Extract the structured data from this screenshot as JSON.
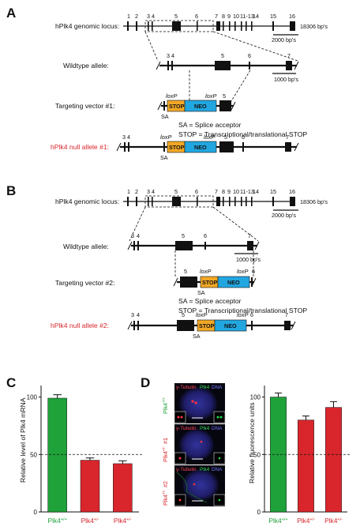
{
  "panelA": {
    "letter": "A",
    "genomic_label": "hPlk4 genomic locus:",
    "genomic_exons": [
      "1",
      "2",
      "3",
      "4",
      "5",
      "6",
      "7",
      "8",
      "9",
      "10",
      "11-13",
      "14",
      "15",
      "16"
    ],
    "genomic_size": "18306 bp's",
    "scale_genomic": "2000 bp's",
    "wt_label": "Wildtype allele:",
    "wt_exons": [
      "3",
      "4",
      "5",
      "6",
      "7"
    ],
    "scale_wt": "1000 bp's",
    "tv_label": "Targeting vector #1:",
    "loxp": "loxP",
    "stop": "STOP",
    "neo": "NEO",
    "sa": "SA",
    "tv_exon": "5",
    "sa_note": "SA = Splice acceptor",
    "stop_note": "STOP = Transcriptional/translational STOP",
    "null_label": "hPlk4 null allele #1:",
    "null_exons": [
      "3",
      "4",
      "5",
      "6",
      "7"
    ]
  },
  "panelB": {
    "letter": "B",
    "genomic_label": "hPlk4 genomic locus:",
    "genomic_exons": [
      "1",
      "2",
      "3",
      "4",
      "5",
      "6",
      "7",
      "8",
      "9",
      "10",
      "11-13",
      "14",
      "15",
      "16"
    ],
    "genomic_size": "18306 bp's",
    "scale_genomic": "2000 bp's",
    "wt_label": "Wildtype allele:",
    "wt_exons": [
      "3",
      "4",
      "5",
      "6",
      "7"
    ],
    "scale_wt": "1000 bp's",
    "tv_label": "Targeting vector #2:",
    "loxp": "loxP",
    "stop": "STOP",
    "neo": "NEO",
    "sa": "SA",
    "tv_exons": [
      "5",
      "6"
    ],
    "sa_note": "SA = Splice acceptor",
    "stop_note": "STOP = Transcriptional/translational STOP",
    "null_label": "hPlk4 null allele #2:",
    "null_exons": [
      "3",
      "4",
      "5",
      "6",
      "7"
    ]
  },
  "panelC": {
    "letter": "C",
    "ylabel": "Relative level of Plk4 mRNA",
    "yticks": [
      "0",
      "50",
      "100"
    ],
    "categories": [
      {
        "line1": "Plk4",
        "sup": "+/+",
        "line2": "",
        "color": "#1fa23a"
      },
      {
        "line1": "Plk4",
        "sup": "+/-",
        "line2": "#1",
        "color": "#d8262c"
      },
      {
        "line1": "Plk4",
        "sup": "+/-",
        "line2": "#2",
        "color": "#d8262c"
      }
    ],
    "values": [
      99,
      45,
      42
    ],
    "errors": [
      3,
      2,
      2.5
    ],
    "ref": 50
  },
  "panelD": {
    "letter": "D",
    "stain_tubulin": "γ-Tubulin",
    "stain_plk4": "Plk4",
    "stain_dna": "DNA",
    "rows": [
      {
        "line1": "Plk4",
        "sup": "+/+",
        "line2": "",
        "color": "#1fa23a"
      },
      {
        "line1": "Plk4",
        "sup": "+/-",
        "line2": "#1",
        "color": "#d8262c"
      },
      {
        "line1": "Plk4",
        "sup": "+/-",
        "line2": "#2",
        "color": "#d8262c"
      }
    ],
    "ylabel": "Relative fluorescence units",
    "yticks": [
      "0",
      "50",
      "100"
    ],
    "categories": [
      {
        "line1": "Plk4",
        "sup": "+/+",
        "line2": "",
        "color": "#1fa23a"
      },
      {
        "line1": "Plk4",
        "sup": "+/-",
        "line2": "#1",
        "color": "#d8262c"
      },
      {
        "line1": "Plk4",
        "sup": "+/-",
        "line2": "#2",
        "color": "#d8262c"
      }
    ],
    "values": [
      100,
      80,
      91
    ],
    "errors": [
      3.5,
      3.5,
      5
    ],
    "ref": 50
  },
  "colors": {
    "stop_box": "#f2a826",
    "neo_box": "#22a6e0",
    "green": "#1fa23a",
    "red": "#d8262c",
    "exon": "#111111"
  },
  "chart_data": [
    {
      "type": "bar",
      "categories": [
        "Plk4+/+",
        "Plk4+/- #1",
        "Plk4+/- #2"
      ],
      "values": [
        99,
        45,
        42
      ],
      "errors": [
        3,
        2,
        2.5
      ],
      "title": "",
      "xlabel": "",
      "ylabel": "Relative level of Plk4 mRNA",
      "ylim": [
        0,
        110
      ],
      "reference_line": 50
    },
    {
      "type": "bar",
      "categories": [
        "Plk4+/+",
        "Plk4+/- #1",
        "Plk4+/- #2"
      ],
      "values": [
        100,
        80,
        91
      ],
      "errors": [
        3.5,
        3.5,
        5
      ],
      "title": "",
      "xlabel": "",
      "ylabel": "Relative fluorescence units",
      "ylim": [
        0,
        110
      ],
      "reference_line": 50
    }
  ]
}
